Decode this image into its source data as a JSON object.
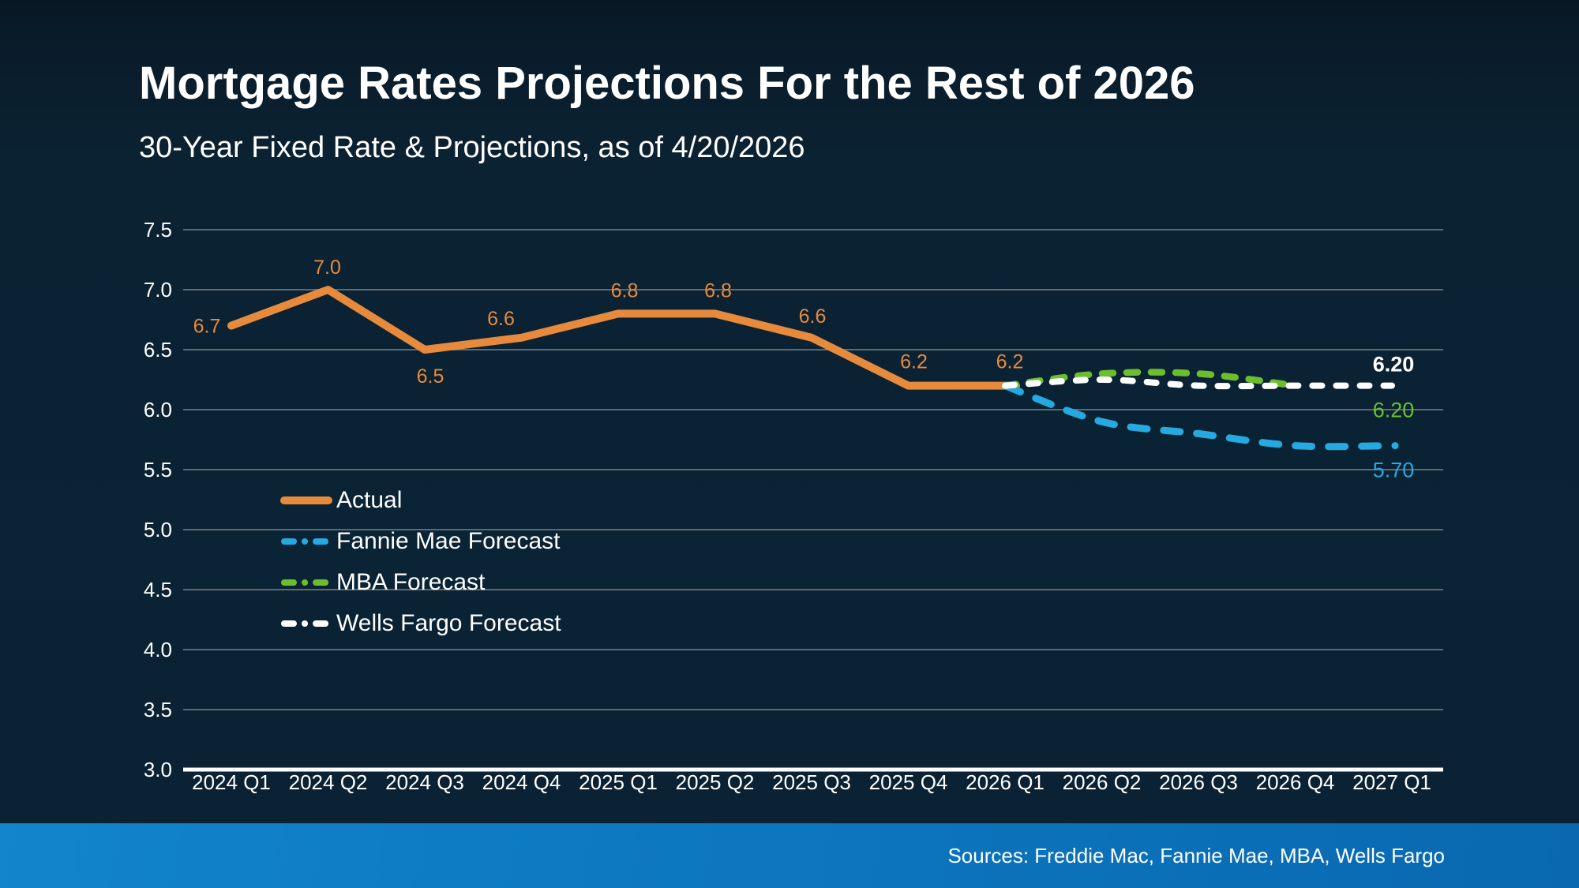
{
  "header": {
    "title": "Mortgage Rates Projections For the Rest of 2026",
    "subtitle": "30-Year Fixed Rate & Projections, as of 4/20/2026"
  },
  "footer": {
    "sources": "Sources: Freddie Mac, Fannie Mae, MBA, Wells Fargo"
  },
  "colors": {
    "actual": "#E78A3C",
    "fannie": "#25A9E0",
    "mba": "#6CBE2F",
    "wells": "#FFFFFF",
    "gridline": "#5E6A72",
    "axis": "#FFFFFF",
    "text": "#FFFFFF",
    "footer_bar_start": "#1285CD",
    "footer_bar_end": "#0968B0",
    "background": "#0A2335"
  },
  "chart_data": {
    "type": "line",
    "title": "Mortgage Rates Projections For the Rest of 2026",
    "subtitle": "30-Year Fixed Rate & Projections, as of 4/20/2026",
    "categories": [
      "2024 Q1",
      "2024 Q2",
      "2024 Q3",
      "2024 Q4",
      "2025 Q1",
      "2025 Q2",
      "2025 Q3",
      "2025 Q4",
      "2026 Q1",
      "2026 Q2",
      "2026 Q3",
      "2026 Q4",
      "2027 Q1"
    ],
    "ylim": [
      3.0,
      7.5
    ],
    "y_tick_labels": [
      "7.5",
      "7.0",
      "6.5",
      "6.0",
      "5.5",
      "5.0",
      "4.5",
      "4.0",
      "3.5",
      "3.0"
    ],
    "grid": true,
    "legend_position": "middle-left",
    "series": [
      {
        "name": "Actual",
        "color_key": "actual",
        "style": "solid",
        "start_index": 0,
        "values": [
          6.7,
          7.0,
          6.5,
          6.6,
          6.8,
          6.8,
          6.6,
          6.2,
          6.2
        ],
        "point_labels": [
          "6.7",
          "7.0",
          "6.5",
          "6.6",
          "6.8",
          "6.8",
          "6.6",
          "6.2",
          "6.2"
        ],
        "label_offsets": [
          [
            -31,
            1
          ],
          [
            -1,
            -28
          ],
          [
            7,
            34
          ],
          [
            -26,
            -24
          ],
          [
            8,
            -29
          ],
          [
            4,
            -29
          ],
          [
            1,
            -27
          ],
          [
            7,
            -30
          ],
          [
            6,
            -30
          ]
        ]
      },
      {
        "name": "Fannie Mae Forecast",
        "color_key": "fannie",
        "style": "dashed",
        "start_index": 8,
        "values": [
          6.2,
          5.9,
          5.8,
          5.7,
          5.7
        ],
        "end_label": "5.70",
        "end_label_side": "below",
        "end_dot": true
      },
      {
        "name": "MBA Forecast",
        "color_key": "mba",
        "style": "dashed",
        "start_index": 8,
        "values": [
          6.2,
          6.3,
          6.3,
          6.2
        ],
        "end_label": "6.20",
        "end_label_side": "below"
      },
      {
        "name": "Wells Fargo Forecast",
        "color_key": "wells",
        "style": "dashed",
        "start_index": 8,
        "values": [
          6.2,
          6.25,
          6.2,
          6.2,
          6.2
        ],
        "end_label": "6.20",
        "end_label_side": "above",
        "end_label_bold": true
      }
    ]
  }
}
